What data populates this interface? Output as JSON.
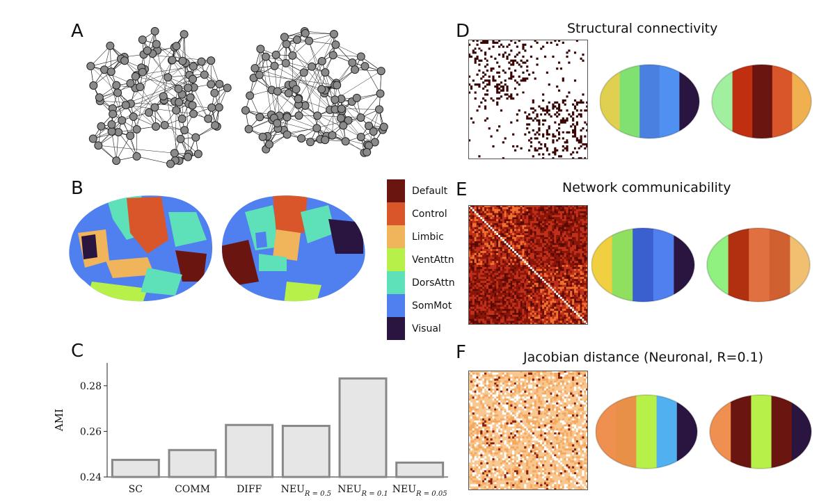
{
  "panels": {
    "a": {
      "letter": "A"
    },
    "b": {
      "letter": "B"
    },
    "c": {
      "letter": "C"
    },
    "d": {
      "letter": "D",
      "title": "Structural connectivity"
    },
    "e": {
      "letter": "E",
      "title": "Network communicability"
    },
    "f": {
      "letter": "F",
      "title": "Jacobian distance (Neuronal, R=0.1)"
    }
  },
  "legend": [
    {
      "label": "Default",
      "color": "#6b1510"
    },
    {
      "label": "Control",
      "color": "#d9562a"
    },
    {
      "label": "Limbic",
      "color": "#f0b45a"
    },
    {
      "label": "VentAttn",
      "color": "#b8f04a"
    },
    {
      "label": "DorsAttn",
      "color": "#5ee0b8"
    },
    {
      "label": "SomMot",
      "color": "#5080f0"
    },
    {
      "label": "Visual",
      "color": "#2a1540"
    }
  ],
  "chart_data": {
    "type": "bar",
    "ylabel": "AMI",
    "ylim": [
      0.24,
      0.29
    ],
    "yticks": [
      "0.24",
      "0.26",
      "0.28"
    ],
    "categories": [
      {
        "base": "SC",
        "sub": ""
      },
      {
        "base": "COMM",
        "sub": ""
      },
      {
        "base": "DIFF",
        "sub": ""
      },
      {
        "base": "NEU",
        "sub": "R = 0.5"
      },
      {
        "base": "NEU",
        "sub": "R = 0.1"
      },
      {
        "base": "NEU",
        "sub": "R = 0.05"
      }
    ],
    "values": [
      0.2475,
      0.2518,
      0.2628,
      0.2624,
      0.2832,
      0.2463
    ],
    "bar_fill": "#e6e6e6",
    "bar_stroke": "#888888"
  }
}
